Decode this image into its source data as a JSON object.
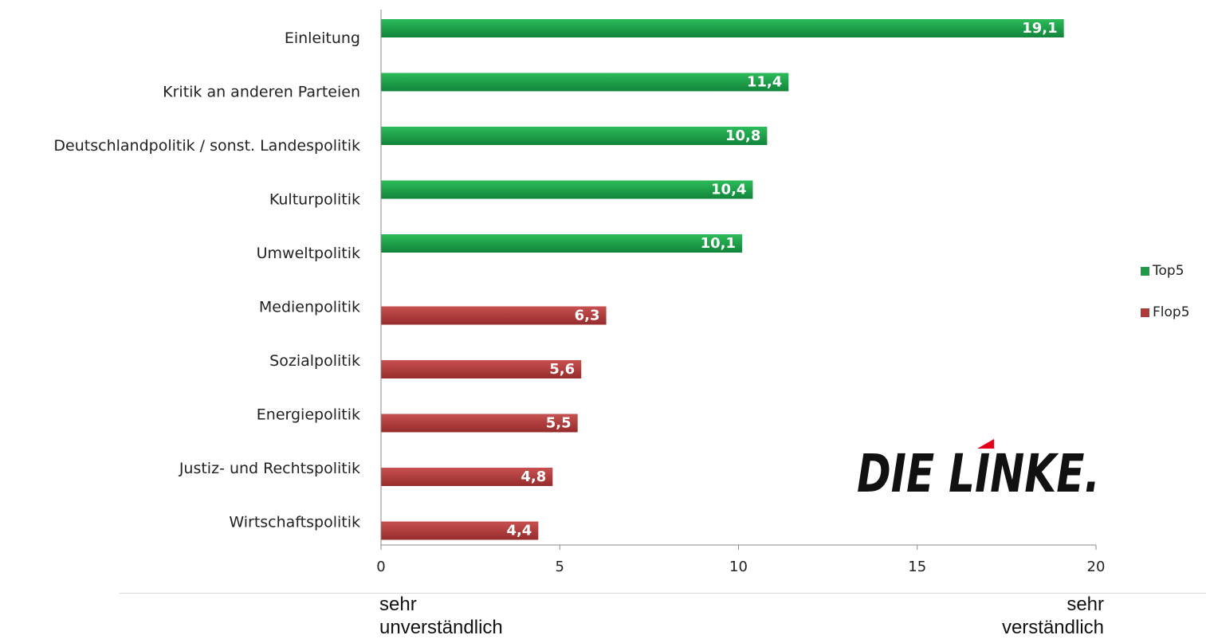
{
  "chart_data": {
    "type": "bar",
    "orientation": "horizontal",
    "categories": [
      "Einleitung",
      "Kritik an anderen Parteien",
      "Deutschlandpolitik / sonst. Landespolitik",
      "Kulturpolitik",
      "Umweltpolitik",
      "Medienpolitik",
      "Sozialpolitik",
      "Energiepolitik",
      "Justiz- und Rechtspolitik",
      "Wirtschaftspolitik"
    ],
    "series": [
      {
        "name": "Top5",
        "color": "#1e9b47",
        "values": [
          19.1,
          11.4,
          10.8,
          10.4,
          10.1,
          null,
          null,
          null,
          null,
          null
        ]
      },
      {
        "name": "Flop5",
        "color": "#b03a3a",
        "values": [
          null,
          null,
          null,
          null,
          null,
          6.3,
          5.6,
          5.5,
          4.8,
          4.4
        ]
      }
    ],
    "data_labels": [
      "19,1",
      "11,4",
      "10,8",
      "10,4",
      "10,1",
      "6,3",
      "5,6",
      "5,5",
      "4,8",
      "4,4"
    ],
    "xlim": [
      0,
      20
    ],
    "x_ticks": [
      "0",
      "5",
      "10",
      "15",
      "20"
    ],
    "legend_position": "right",
    "grid": false,
    "x_axis_annotations": {
      "left": "sehr\nunverständlich",
      "right": "sehr\nverständlich"
    }
  },
  "legend": {
    "top5": "Top5",
    "flop5": "Flop5"
  },
  "annotations": {
    "left_line1": "sehr",
    "left_line2": "unverständlich",
    "right_line1": "sehr",
    "right_line2": "verständlich"
  },
  "logo": {
    "text": "DIE LINKE.",
    "color": "#111111",
    "accent": "#e2001a"
  }
}
